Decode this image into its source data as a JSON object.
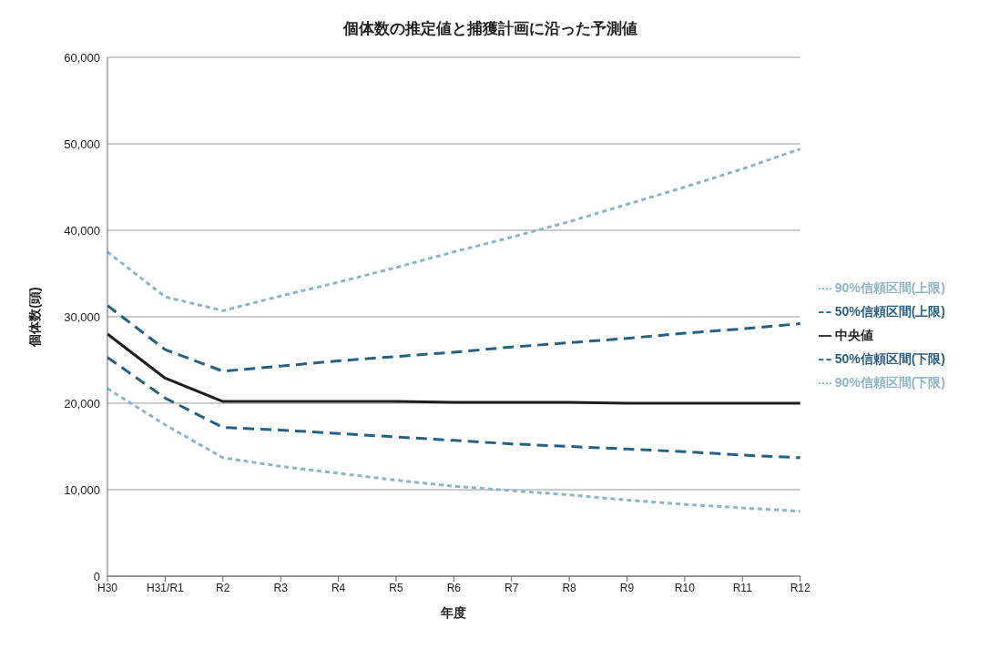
{
  "chart_data": {
    "type": "line",
    "title": "個体数の推定値と捕獲計画に沿った予測値",
    "xlabel": "年度",
    "ylabel": "個体数(頭)",
    "categories": [
      "H30",
      "H31/R1",
      "R2",
      "R3",
      "R4",
      "R5",
      "R6",
      "R7",
      "R8",
      "R9",
      "R10",
      "R11",
      "R12"
    ],
    "series": [
      {
        "name": "90%信頼区間(上限)",
        "color": "#8fb4c6",
        "line_style": "dotted",
        "values": [
          37500,
          32300,
          30700,
          32400,
          34000,
          35700,
          37500,
          39200,
          41000,
          43000,
          45000,
          47100,
          49400
        ]
      },
      {
        "name": "50%信頼区間(上限)",
        "color": "#2a5f80",
        "line_style": "dashed",
        "values": [
          31300,
          26200,
          23700,
          24300,
          24900,
          25400,
          25900,
          26500,
          27000,
          27500,
          28100,
          28600,
          29200
        ]
      },
      {
        "name": "中央値",
        "color": "#1e1e1e",
        "line_style": "solid",
        "values": [
          28000,
          22900,
          20200,
          20200,
          20200,
          20200,
          20100,
          20100,
          20100,
          20000,
          20000,
          20000,
          20000
        ]
      },
      {
        "name": "50%信頼区間(下限)",
        "color": "#2a5f80",
        "line_style": "dashed",
        "values": [
          25300,
          20600,
          17200,
          16900,
          16500,
          16100,
          15700,
          15300,
          15000,
          14700,
          14400,
          14000,
          13700
        ]
      },
      {
        "name": "90%信頼区間(下限)",
        "color": "#8fb4c6",
        "line_style": "dotted",
        "values": [
          21700,
          17500,
          13700,
          12700,
          11900,
          11100,
          10400,
          9900,
          9400,
          8800,
          8300,
          7900,
          7500
        ]
      }
    ],
    "ylim": [
      0,
      60000
    ],
    "yticks": [
      0,
      {
        "value": 10000,
        "label": "10,000"
      },
      {
        "value": 20000,
        "label": "20,000"
      },
      {
        "value": 30000,
        "label": "30,000"
      },
      {
        "value": 40000,
        "label": "40,000"
      },
      {
        "value": 50000,
        "label": "50,000"
      },
      {
        "value": 60000,
        "label": "60,000"
      }
    ],
    "grid": "y",
    "legend": "right",
    "marker": "none"
  }
}
